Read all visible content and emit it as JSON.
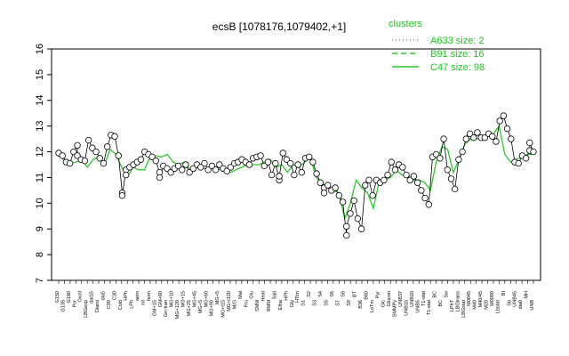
{
  "chart_data": {
    "type": "line",
    "title": "ecsB [1078176,1079402,+1]",
    "xlabel": "",
    "ylabel": "",
    "ylim": [
      7,
      16
    ],
    "yticks": [
      7,
      8,
      9,
      10,
      11,
      12,
      13,
      14,
      15,
      16
    ],
    "grid": false,
    "legend": {
      "placement": "top-right",
      "title": "clusters",
      "entries": [
        {
          "label": "A633 size: 2",
          "style": "dotted"
        },
        {
          "label": "B91 size: 16",
          "style": "dashed"
        },
        {
          "label": "C47 size: 98",
          "style": "solid"
        }
      ]
    },
    "line_color": "#2ec82e",
    "x_labels": [
      "G150",
      "G135",
      "G180",
      "Pcr",
      "Oxctl",
      "LBGexp",
      "dat15",
      "Diami",
      "dia5",
      "C90",
      "C30",
      "Cold",
      "HPh",
      "LPh",
      "aero",
      "nit",
      "ferm",
      "GM+15",
      "GM+60",
      "Grr-tran",
      "MG+10",
      "MG+120",
      "MG+15",
      "MG+25",
      "MG+45",
      "MG+5",
      "MG+60",
      "MG+90",
      "MG+5",
      "MG+t15",
      "MG+t120",
      "M/G",
      "Mal",
      "Fru",
      "Glu",
      "SMM",
      "Heat",
      "BMM",
      "Salt",
      "Etha",
      "HPh",
      "Gly",
      "HTim",
      "S1",
      "S2",
      "S3",
      "S4",
      "S5",
      "S6",
      "S7",
      "S8",
      "S9",
      "BT",
      "B36",
      "B60",
      "LoTm",
      "Pyr",
      "Glc",
      "Glucon",
      "SMMPy",
      "UNB37",
      "UNB15",
      "UNB10",
      "UNB5",
      "T1-stat",
      "T1-stat",
      "BC",
      "BC",
      "Sw",
      "LPhT",
      "LBGtrans",
      "LBGstat",
      "M0045",
      "M40",
      "M40/45",
      "M20",
      "M0090",
      "Lbstat",
      "BI",
      "Sb",
      "UNB45",
      "dia0",
      "MH",
      "UNB"
    ],
    "x_label_color": [
      "Ssk",
      "UNB"
    ],
    "series": [
      {
        "values": [
          11.85,
          11.7,
          11.55,
          11.6,
          11.7,
          11.4,
          11.7,
          11.8,
          11.5,
          12.1,
          11.9,
          11.4,
          11.0,
          11.4,
          11.3,
          11.3,
          11.8,
          11.85,
          11.8,
          11.9,
          11.6,
          11.5,
          11.6,
          11.3,
          11.5,
          11.4,
          11.3,
          11.5,
          11.3,
          11.4,
          11.2,
          11.3,
          11.4,
          11.5,
          11.5,
          11.5,
          11.6,
          11.7,
          11.4,
          11.5,
          11.2,
          11.5,
          11.4,
          11.6,
          11.8,
          11.0,
          10.8,
          10.6,
          10.5,
          10.4,
          9.4,
          10.0,
          10.9,
          10.6,
          10.4,
          9.8,
          10.8,
          10.9,
          11.0,
          11.3,
          11.1,
          11.1,
          10.9,
          10.9,
          10.8,
          10.5,
          11.6,
          12.2,
          12.1,
          11.2,
          11.7,
          12.3,
          12.5,
          12.5,
          12.5,
          12.6,
          12.7,
          13.0,
          11.9,
          11.6,
          11.7,
          11.8,
          11.9,
          11.9
        ]
      }
    ],
    "points": [
      [
        1,
        11.95
      ],
      [
        2,
        11.85
      ],
      [
        3,
        11.6
      ],
      [
        4,
        11.55
      ],
      [
        5,
        12.0
      ],
      [
        6,
        12.25
      ],
      [
        6,
        11.85
      ],
      [
        7,
        11.7
      ],
      [
        8,
        11.65
      ],
      [
        9,
        12.45
      ],
      [
        10,
        12.15
      ],
      [
        11,
        12.0
      ],
      [
        12,
        11.75
      ],
      [
        13,
        11.55
      ],
      [
        14,
        12.2
      ],
      [
        15,
        12.65
      ],
      [
        16,
        12.6
      ],
      [
        17,
        11.85
      ],
      [
        18,
        10.4
      ],
      [
        18,
        10.3
      ],
      [
        19,
        11.3
      ],
      [
        19,
        11.1
      ],
      [
        20,
        11.4
      ],
      [
        21,
        11.5
      ],
      [
        22,
        11.6
      ],
      [
        23,
        11.7
      ],
      [
        24,
        12.0
      ],
      [
        25,
        11.9
      ],
      [
        26,
        11.8
      ],
      [
        27,
        11.65
      ],
      [
        28,
        11.2
      ],
      [
        28,
        11.0
      ],
      [
        29,
        11.45
      ],
      [
        30,
        11.35
      ],
      [
        31,
        11.2
      ],
      [
        32,
        11.35
      ],
      [
        33,
        11.45
      ],
      [
        34,
        11.3
      ],
      [
        35,
        11.5
      ],
      [
        36,
        11.2
      ],
      [
        37,
        11.35
      ],
      [
        38,
        11.5
      ],
      [
        39,
        11.4
      ],
      [
        40,
        11.55
      ],
      [
        41,
        11.3
      ],
      [
        42,
        11.45
      ],
      [
        43,
        11.3
      ],
      [
        44,
        11.5
      ],
      [
        45,
        11.35
      ],
      [
        46,
        11.25
      ],
      [
        47,
        11.4
      ],
      [
        48,
        11.55
      ],
      [
        49,
        11.6
      ],
      [
        50,
        11.7
      ],
      [
        51,
        11.6
      ],
      [
        52,
        11.5
      ],
      [
        53,
        11.75
      ],
      [
        54,
        11.8
      ],
      [
        55,
        11.85
      ],
      [
        56,
        11.45
      ],
      [
        57,
        11.6
      ],
      [
        58,
        11.1
      ],
      [
        59,
        11.55
      ],
      [
        60,
        10.9
      ],
      [
        60,
        11.05
      ],
      [
        61,
        11.95
      ],
      [
        62,
        11.7
      ],
      [
        63,
        11.55
      ],
      [
        64,
        11.1
      ],
      [
        65,
        11.5
      ],
      [
        66,
        11.2
      ],
      [
        67,
        11.75
      ],
      [
        68,
        11.8
      ],
      [
        69,
        11.6
      ],
      [
        70,
        11.15
      ],
      [
        71,
        10.8
      ],
      [
        72,
        10.6
      ],
      [
        72,
        10.4
      ],
      [
        73,
        10.7
      ],
      [
        74,
        10.5
      ],
      [
        75,
        10.6
      ],
      [
        76,
        10.3
      ],
      [
        77,
        10.05
      ],
      [
        78,
        8.75
      ],
      [
        78,
        9.1
      ],
      [
        79,
        9.6
      ],
      [
        80,
        10.1
      ],
      [
        81,
        9.4
      ],
      [
        82,
        9.0
      ],
      [
        83,
        10.7
      ],
      [
        84,
        10.9
      ],
      [
        85,
        10.3
      ],
      [
        86,
        10.9
      ],
      [
        87,
        10.8
      ],
      [
        88,
        10.9
      ],
      [
        89,
        11.1
      ],
      [
        90,
        11.6
      ],
      [
        91,
        11.3
      ],
      [
        92,
        11.5
      ],
      [
        93,
        11.4
      ],
      [
        94,
        11.1
      ],
      [
        95,
        10.9
      ],
      [
        96,
        11.05
      ],
      [
        97,
        10.8
      ],
      [
        98,
        10.5
      ],
      [
        99,
        10.2
      ],
      [
        100,
        9.95
      ],
      [
        101,
        11.8
      ],
      [
        102,
        11.9
      ],
      [
        103,
        11.75
      ],
      [
        104,
        12.5
      ],
      [
        105,
        11.3
      ],
      [
        106,
        10.95
      ],
      [
        107,
        10.55
      ],
      [
        108,
        11.7
      ],
      [
        109,
        12.0
      ],
      [
        110,
        12.5
      ],
      [
        111,
        12.7
      ],
      [
        112,
        12.55
      ],
      [
        113,
        12.75
      ],
      [
        114,
        12.55
      ],
      [
        115,
        12.55
      ],
      [
        116,
        12.7
      ],
      [
        117,
        12.6
      ],
      [
        118,
        12.4
      ],
      [
        119,
        13.2
      ],
      [
        120,
        13.4
      ],
      [
        121,
        12.9
      ],
      [
        122,
        12.5
      ],
      [
        123,
        11.6
      ],
      [
        124,
        11.55
      ],
      [
        125,
        11.85
      ],
      [
        126,
        11.75
      ],
      [
        127,
        12.05
      ],
      [
        127,
        12.35
      ],
      [
        128,
        12.0
      ]
    ]
  }
}
